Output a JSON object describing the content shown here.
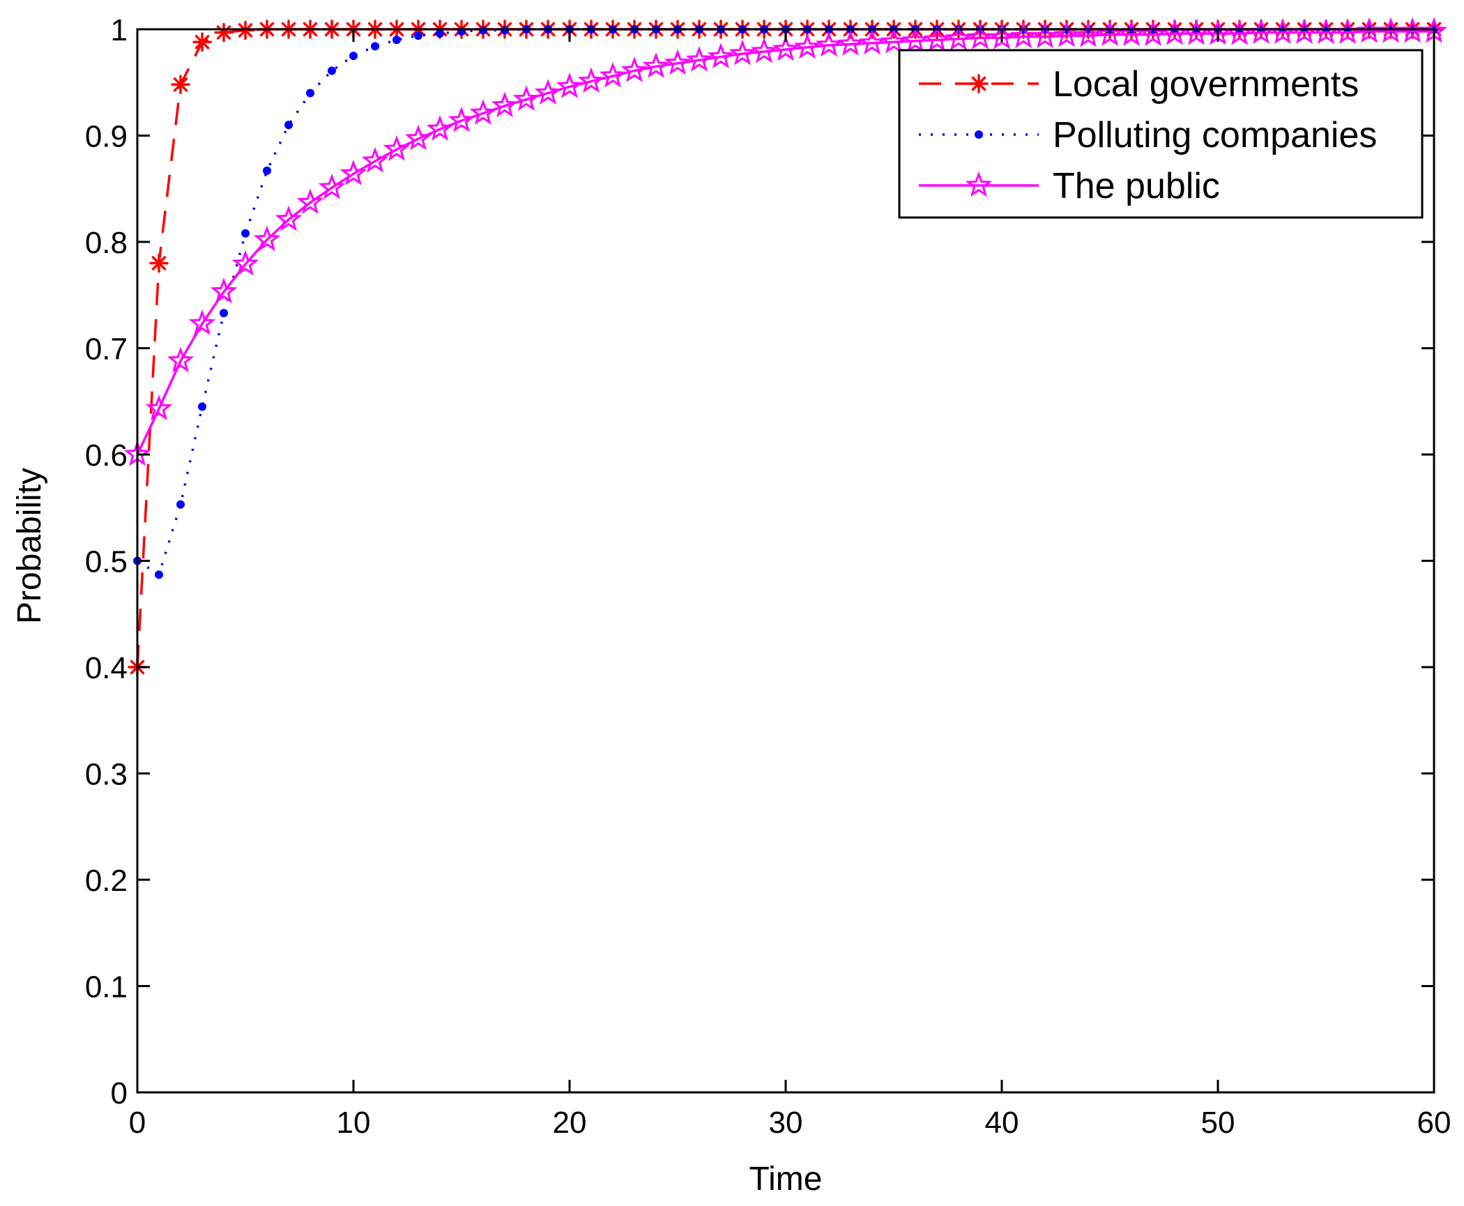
{
  "chart_data": {
    "type": "line",
    "title": "",
    "xlabel": "Time",
    "ylabel": "Probability",
    "xlim": [
      0,
      60
    ],
    "ylim": [
      0,
      1
    ],
    "xticks": [
      0,
      10,
      20,
      30,
      40,
      50,
      60
    ],
    "yticks": [
      0,
      0.1,
      0.2,
      0.3,
      0.4,
      0.5,
      0.6,
      0.7,
      0.8,
      0.9,
      1
    ],
    "xtick_labels": [
      "0",
      "10",
      "20",
      "30",
      "40",
      "50",
      "60"
    ],
    "ytick_labels": [
      "0",
      "0.1",
      "0.2",
      "0.3",
      "0.4",
      "0.5",
      "0.6",
      "0.7",
      "0.8",
      "0.9",
      "1"
    ],
    "grid": false,
    "legend_position": "top-right",
    "series": [
      {
        "name": "Local governments",
        "color": "#ff0000",
        "line_style": "dashed",
        "marker": "asterisk",
        "x": [
          0,
          1,
          2,
          3,
          4,
          5,
          6,
          7,
          8,
          9,
          10,
          11,
          12,
          13,
          14,
          15,
          16,
          17,
          18,
          19,
          20,
          21,
          22,
          23,
          24,
          25,
          26,
          27,
          28,
          29,
          30,
          31,
          32,
          33,
          34,
          35,
          36,
          37,
          38,
          39,
          40,
          41,
          42,
          43,
          44,
          45,
          46,
          47,
          48,
          49,
          50,
          51,
          52,
          53,
          54,
          55,
          56,
          57,
          58,
          59,
          60
        ],
        "y": [
          0.4,
          0.78,
          0.948,
          0.988,
          0.997,
          0.999,
          1,
          1,
          1,
          1,
          1,
          1,
          1,
          1,
          1,
          1,
          1,
          1,
          1,
          1,
          1,
          1,
          1,
          1,
          1,
          1,
          1,
          1,
          1,
          1,
          1,
          1,
          1,
          1,
          1,
          1,
          1,
          1,
          1,
          1,
          1,
          1,
          1,
          1,
          1,
          1,
          1,
          1,
          1,
          1,
          1,
          1,
          1,
          1,
          1,
          1,
          1,
          1,
          1,
          1,
          1
        ]
      },
      {
        "name": "Polluting companies",
        "color": "#0000ff",
        "line_style": "dotted",
        "marker": "dot",
        "x": [
          0,
          1,
          2,
          3,
          4,
          5,
          6,
          7,
          8,
          9,
          10,
          11,
          12,
          13,
          14,
          15,
          16,
          17,
          18,
          19,
          20,
          21,
          22,
          23,
          24,
          25,
          26,
          27,
          28,
          29,
          30,
          31,
          32,
          33,
          34,
          35,
          36,
          37,
          38,
          39,
          40,
          41,
          42,
          43,
          44,
          45,
          46,
          47,
          48,
          49,
          50,
          51,
          52,
          53,
          54,
          55,
          56,
          57,
          58,
          59,
          60
        ],
        "y": [
          0.5,
          0.487,
          0.553,
          0.645,
          0.733,
          0.808,
          0.867,
          0.91,
          0.94,
          0.961,
          0.975,
          0.984,
          0.99,
          0.994,
          0.996,
          0.998,
          0.999,
          0.999,
          1,
          1,
          1,
          1,
          1,
          1,
          1,
          1,
          1,
          1,
          1,
          1,
          1,
          1,
          1,
          1,
          1,
          1,
          1,
          1,
          1,
          1,
          1,
          1,
          1,
          1,
          1,
          1,
          1,
          1,
          1,
          1,
          1,
          1,
          1,
          1,
          1,
          1,
          1,
          1,
          1,
          1,
          1
        ]
      },
      {
        "name": "The public",
        "color": "#ff00ff",
        "line_style": "solid",
        "marker": "star",
        "x": [
          0,
          1,
          2,
          3,
          4,
          5,
          6,
          7,
          8,
          9,
          10,
          11,
          12,
          13,
          14,
          15,
          16,
          17,
          18,
          19,
          20,
          21,
          22,
          23,
          24,
          25,
          26,
          27,
          28,
          29,
          30,
          31,
          32,
          33,
          34,
          35,
          36,
          37,
          38,
          39,
          40,
          41,
          42,
          43,
          44,
          45,
          46,
          47,
          48,
          49,
          50,
          51,
          52,
          53,
          54,
          55,
          56,
          57,
          58,
          59,
          60
        ],
        "y": [
          0.6,
          0.643,
          0.688,
          0.723,
          0.753,
          0.779,
          0.802,
          0.821,
          0.837,
          0.851,
          0.864,
          0.876,
          0.887,
          0.897,
          0.906,
          0.914,
          0.921,
          0.928,
          0.934,
          0.94,
          0.946,
          0.951,
          0.956,
          0.961,
          0.965,
          0.968,
          0.971,
          0.974,
          0.977,
          0.979,
          0.981,
          0.983,
          0.985,
          0.986,
          0.987,
          0.988,
          0.989,
          0.99,
          0.991,
          0.992,
          0.992,
          0.993,
          0.993,
          0.994,
          0.994,
          0.995,
          0.995,
          0.995,
          0.996,
          0.996,
          0.996,
          0.996,
          0.997,
          0.997,
          0.997,
          0.997,
          0.997,
          0.998,
          0.998,
          0.998,
          0.998
        ]
      }
    ]
  }
}
